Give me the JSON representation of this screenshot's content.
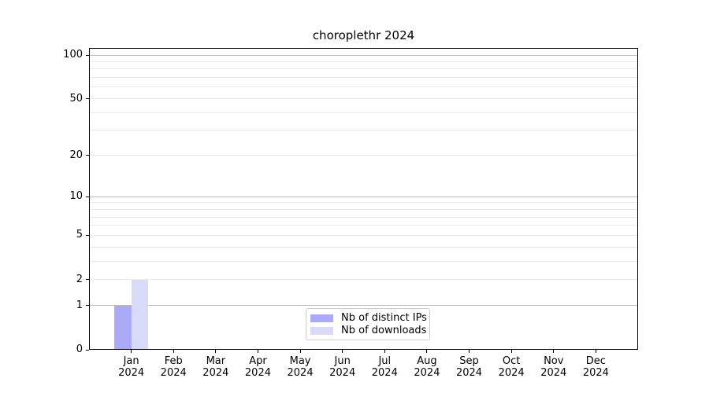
{
  "chart_data": {
    "type": "bar",
    "title": "choroplethr 2024",
    "categories": [
      "Jan",
      "Feb",
      "Mar",
      "Apr",
      "May",
      "Jun",
      "Jul",
      "Aug",
      "Sep",
      "Oct",
      "Nov",
      "Dec"
    ],
    "category_year": "2024",
    "series": [
      {
        "name": "Nb of distinct IPs",
        "color": "#aaaaf8",
        "values": [
          1,
          0,
          0,
          0,
          0,
          0,
          0,
          0,
          0,
          0,
          0,
          0
        ]
      },
      {
        "name": "Nb of downloads",
        "color": "#d9d9f8",
        "values": [
          2,
          0,
          0,
          0,
          0,
          0,
          0,
          0,
          0,
          0,
          0,
          0
        ]
      }
    ],
    "y_axis": {
      "scale": "log1p",
      "ticks": [
        0,
        1,
        2,
        5,
        10,
        20,
        50,
        100
      ],
      "range_max": 100,
      "major_gridlines": [
        1,
        10,
        100
      ],
      "minor_gridlines": [
        2,
        3,
        4,
        5,
        6,
        7,
        8,
        9,
        20,
        30,
        40,
        50,
        60,
        70,
        80,
        90
      ]
    },
    "legend": {
      "position": "lower center"
    },
    "colors": {
      "major_grid": "#bdbdbd",
      "minor_grid": "#ebebeb",
      "spine": "#000000",
      "text": "#000000"
    }
  }
}
